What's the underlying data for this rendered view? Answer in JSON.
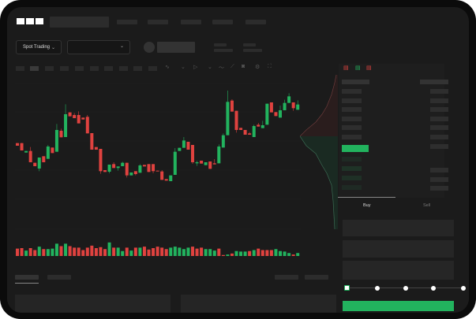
{
  "header": {
    "logo": "OKX",
    "nav_count": 5
  },
  "toolbar": {
    "market_dropdown": "Spot Trading"
  },
  "order_panel": {
    "tabs": [
      {
        "label": "Buy",
        "active": true
      },
      {
        "label": "Sell",
        "active": false
      }
    ],
    "amount_slider_percent": 0
  },
  "colors": {
    "up": "#22b35e",
    "down": "#e0423f",
    "background": "#1b1b1b",
    "accent": "#22b35e"
  },
  "chart_data": {
    "type": "candlestick",
    "title": "",
    "grid": true,
    "candles": [
      [
        355,
        355,
        345,
        345
      ],
      [
        355,
        355,
        327,
        327
      ],
      [
        319,
        325,
        319,
        325
      ],
      [
        325,
        340,
        282,
        282
      ],
      [
        280,
        280,
        267,
        267
      ],
      [
        258,
        300,
        248,
        300
      ],
      [
        305,
        305,
        282,
        282
      ],
      [
        295,
        348,
        295,
        342
      ],
      [
        338,
        338,
        317,
        317
      ],
      [
        322,
        428,
        322,
        405
      ],
      [
        402,
        410,
        377,
        377
      ],
      [
        378,
        503,
        378,
        465
      ],
      [
        472,
        472,
        457,
        457
      ],
      [
        462,
        470,
        450,
        450
      ],
      [
        462,
        476,
        430,
        430
      ],
      [
        452,
        452,
        445,
        445
      ],
      [
        455,
        462,
        392,
        392
      ],
      [
        393,
        393,
        330,
        330
      ],
      [
        340,
        340,
        330,
        330
      ],
      [
        333,
        333,
        238,
        248
      ],
      [
        252,
        252,
        245,
        245
      ],
      [
        246,
        273,
        240,
        273
      ],
      [
        275,
        282,
        260,
        260
      ],
      [
        260,
        266,
        250,
        266
      ],
      [
        267,
        284,
        267,
        280
      ],
      [
        280,
        280,
        224,
        232
      ],
      [
        232,
        243,
        232,
        243
      ],
      [
        248,
        248,
        232,
        237
      ],
      [
        242,
        275,
        242,
        270
      ],
      [
        272,
        272,
        266,
        266
      ],
      [
        275,
        275,
        245,
        245
      ],
      [
        275,
        275,
        240,
        248
      ],
      [
        250,
        250,
        248,
        248
      ],
      [
        247,
        252,
        215,
        215
      ],
      [
        218,
        218,
        212,
        212
      ],
      [
        210,
        232,
        210,
        232
      ],
      [
        234,
        336,
        234,
        322
      ],
      [
        325,
        337,
        325,
        337
      ],
      [
        337,
        378,
        337,
        365
      ],
      [
        360,
        360,
        330,
        330
      ],
      [
        348,
        348,
        276,
        282
      ],
      [
        278,
        288,
        268,
        282
      ],
      [
        288,
        288,
        277,
        277
      ],
      [
        271,
        282,
        271,
        282
      ],
      [
        285,
        285,
        257,
        257
      ],
      [
        278,
        294,
        274,
        274
      ],
      [
        278,
        350,
        278,
        342
      ],
      [
        338,
        392,
        338,
        385
      ],
      [
        385,
        555,
        385,
        512
      ],
      [
        517,
        522,
        475,
        475
      ],
      [
        478,
        478,
        395,
        405
      ],
      [
        413,
        413,
        405,
        405
      ],
      [
        405,
        405,
        387,
        387
      ],
      [
        392,
        397,
        387,
        387
      ],
      [
        378,
        425,
        378,
        420
      ],
      [
        425,
        432,
        418,
        418
      ],
      [
        412,
        440,
        412,
        423
      ],
      [
        425,
        505,
        425,
        505
      ],
      [
        510,
        510,
        472,
        472
      ],
      [
        473,
        473,
        458,
        458
      ],
      [
        452,
        498,
        452,
        480
      ],
      [
        480,
        520,
        480,
        508
      ],
      [
        508,
        545,
        508,
        533
      ],
      [
        510,
        510,
        478,
        488
      ],
      [
        482,
        518,
        482,
        502
      ]
    ],
    "volume": [
      30,
      32,
      22,
      32,
      24,
      38,
      28,
      28,
      30,
      50,
      40,
      50,
      40,
      34,
      34,
      24,
      34,
      42,
      32,
      36,
      28,
      55,
      34,
      34,
      20,
      34,
      22,
      34,
      34,
      38,
      26,
      32,
      38,
      34,
      28,
      34,
      38,
      34,
      28,
      34,
      38,
      30,
      34,
      28,
      28,
      22,
      30,
      4,
      6,
      10,
      20,
      18,
      18,
      20,
      24,
      30,
      24,
      24,
      24,
      28,
      20,
      18,
      12,
      6,
      12
    ],
    "volume_up": [
      0,
      0,
      1,
      0,
      0,
      1,
      0,
      1,
      1,
      1,
      0,
      1,
      0,
      0,
      0,
      0,
      0,
      0,
      0,
      0,
      0,
      1,
      0,
      1,
      1,
      0,
      1,
      0,
      1,
      0,
      0,
      0,
      0,
      0,
      0,
      1,
      1,
      1,
      1,
      1,
      0,
      0,
      0,
      1,
      1,
      1,
      0,
      0,
      1,
      0,
      1,
      1,
      1,
      0,
      1,
      0,
      0,
      0,
      0,
      1,
      1,
      1,
      1,
      0,
      1
    ]
  }
}
